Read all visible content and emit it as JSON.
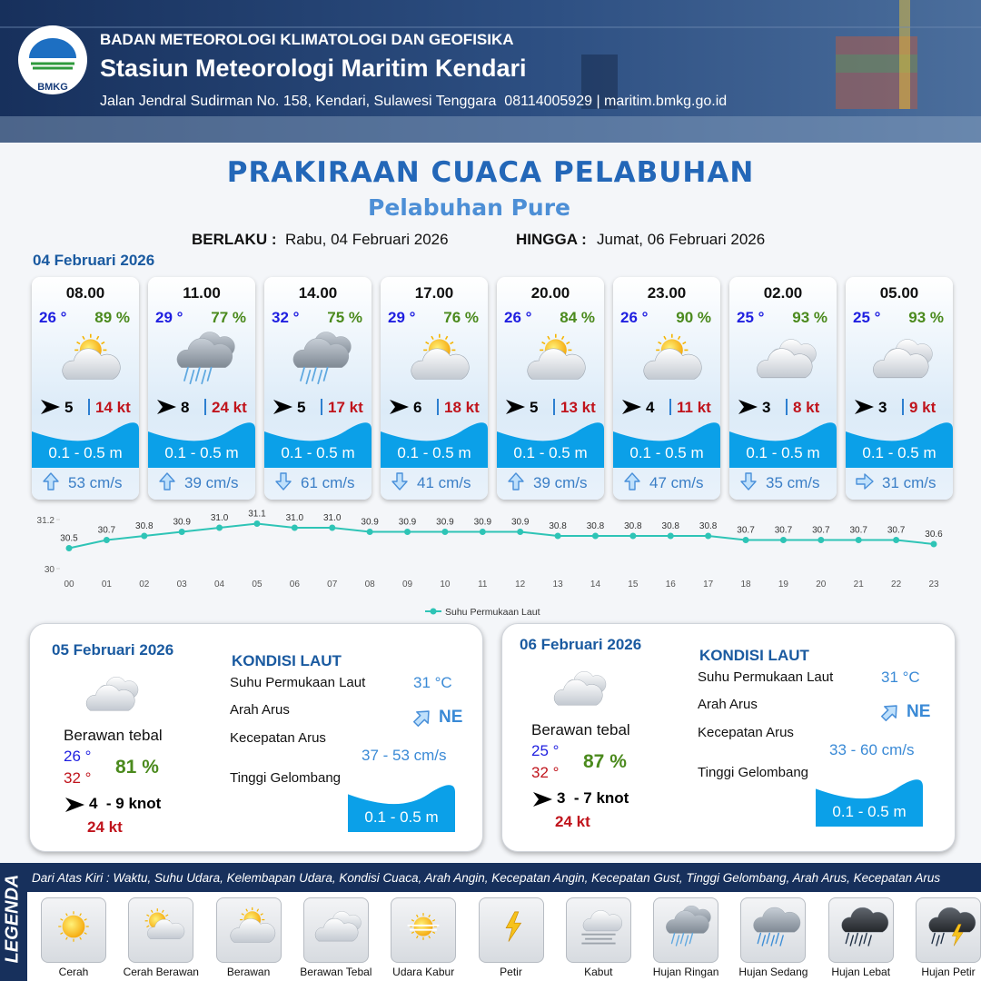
{
  "header": {
    "logo": "BMKG",
    "organization": "BADAN METEOROLOGI KLIMATOLOGI DAN GEOFISIKA",
    "station": "Stasiun Meteorologi Maritim Kendari",
    "address": "Jalan Jendral Sudirman No. 158, Kendari, Sulawesi Tenggara  08114005929 | maritim.bmkg.go.id"
  },
  "title": "PRAKIRAAN CUACA PELABUHAN",
  "subtitle": "Pelabuhan Pure",
  "validity": {
    "from_label": "BERLAKU :",
    "from": "Rabu, 04 Februari 2026",
    "to_label": "HINGGA :",
    "to": "Jumat, 06 Februari 2026"
  },
  "day1": {
    "date": "04 Februari 2026",
    "slots": [
      {
        "time": "08.00",
        "temp": "26 °",
        "humidity": "89 %",
        "icon": "cloud-sun",
        "wind": "5",
        "gust": "14 kt",
        "wave": "0.1 - 0.5 m",
        "current_dir": "up",
        "current": "53 cm/s"
      },
      {
        "time": "11.00",
        "temp": "29 °",
        "humidity": "77 %",
        "icon": "rain-light",
        "wind": "8",
        "gust": "24 kt",
        "wave": "0.1 - 0.5 m",
        "current_dir": "up",
        "current": "39 cm/s"
      },
      {
        "time": "14.00",
        "temp": "32 °",
        "humidity": "75 %",
        "icon": "rain-light",
        "wind": "5",
        "gust": "17 kt",
        "wave": "0.1 - 0.5 m",
        "current_dir": "down",
        "current": "61 cm/s"
      },
      {
        "time": "17.00",
        "temp": "29 °",
        "humidity": "76 %",
        "icon": "cloud-sun",
        "wind": "6",
        "gust": "18 kt",
        "wave": "0.1 - 0.5 m",
        "current_dir": "down",
        "current": "41 cm/s"
      },
      {
        "time": "20.00",
        "temp": "26 °",
        "humidity": "84 %",
        "icon": "cloud-sun",
        "wind": "5",
        "gust": "13 kt",
        "wave": "0.1 - 0.5 m",
        "current_dir": "up",
        "current": "39 cm/s"
      },
      {
        "time": "23.00",
        "temp": "26 °",
        "humidity": "90 %",
        "icon": "cloud-sun",
        "wind": "4",
        "gust": "11 kt",
        "wave": "0.1 - 0.5 m",
        "current_dir": "up",
        "current": "47 cm/s"
      },
      {
        "time": "02.00",
        "temp": "25 °",
        "humidity": "93 %",
        "icon": "clouds",
        "wind": "3",
        "gust": "8 kt",
        "wave": "0.1 - 0.5 m",
        "current_dir": "down",
        "current": "35 cm/s"
      },
      {
        "time": "05.00",
        "temp": "25 °",
        "humidity": "93 %",
        "icon": "clouds",
        "wind": "3",
        "gust": "9 kt",
        "wave": "0.1 - 0.5 m",
        "current_dir": "right",
        "current": "31 cm/s"
      }
    ]
  },
  "chart_data": {
    "type": "line",
    "categories": [
      "00",
      "01",
      "02",
      "03",
      "04",
      "05",
      "06",
      "07",
      "08",
      "09",
      "10",
      "11",
      "12",
      "13",
      "14",
      "15",
      "16",
      "17",
      "18",
      "19",
      "20",
      "21",
      "22",
      "23"
    ],
    "series": [
      {
        "name": "Suhu Permukaan Laut",
        "color": "#2ec4b6",
        "values": [
          30.5,
          30.7,
          30.8,
          30.9,
          31.0,
          31.1,
          31.0,
          31.0,
          30.9,
          30.9,
          30.9,
          30.9,
          30.9,
          30.8,
          30.8,
          30.8,
          30.8,
          30.8,
          30.7,
          30.7,
          30.7,
          30.7,
          30.7,
          30.6
        ],
        "value_labels": [
          "30.5",
          "30.7",
          "30.8",
          "30.9",
          "31.0",
          "31.1",
          "31.0",
          "31.0",
          "30.9",
          "30.9",
          "30.9",
          "30.9",
          "30.9",
          "30.8",
          "30.8",
          "30.8",
          "30.8",
          "30.8",
          "30.7",
          "30.7",
          "30.7",
          "30.7",
          "30.7",
          "30.6"
        ]
      }
    ],
    "ylim": [
      30,
      31.2
    ],
    "yticks": [
      30,
      31.2
    ],
    "legend": "bottom"
  },
  "panels": [
    {
      "date": "05 Februari 2026",
      "icon": "clouds",
      "condition": "Berawan tebal",
      "temp_min": "26 °",
      "temp_max": "32 °",
      "humidity": "81 %",
      "wind": "4  - 9 knot",
      "gust": "24 kt",
      "sea_title": "KONDISI LAUT",
      "sea_labels": [
        "Suhu Permukaan Laut",
        "Arah Arus",
        "Kecepatan Arus",
        "Tinggi Gelombang"
      ],
      "sst": "31 °C",
      "current_dir": "ne",
      "current_direction": "NE",
      "current_speed": "37 - 53 cm/s",
      "wave": "0.1 - 0.5 m"
    },
    {
      "date": "06 Februari 2026",
      "icon": "clouds",
      "condition": "Berawan tebal",
      "temp_min": "25 °",
      "temp_max": "32 °",
      "humidity": "87 %",
      "wind": "3  - 7 knot",
      "gust": "24 kt",
      "sea_title": "KONDISI LAUT",
      "sea_labels": [
        "Suhu Permukaan Laut",
        "Arah Arus",
        "Kecepatan Arus",
        "Tinggi Gelombang"
      ],
      "sst": "31 °C",
      "current_dir": "ne",
      "current_direction": "NE",
      "current_speed": "33 - 60 cm/s",
      "wave": "0.1 - 0.5 m"
    }
  ],
  "legend": {
    "title": "LEGENDA",
    "note": "Dari Atas Kiri : Waktu, Suhu Udara, Kelembapan Udara, Kondisi Cuaca, Arah Angin, Kecepatan Angin, Kecepatan Gust, Tinggi Gelombang, Arah Arus, Kecepatan Arus",
    "items": [
      {
        "label": "Cerah",
        "icon": "sun"
      },
      {
        "label": "Cerah Berawan",
        "icon": "sun-cloud"
      },
      {
        "label": "Berawan",
        "icon": "cloud-sun"
      },
      {
        "label": "Berawan Tebal",
        "icon": "clouds"
      },
      {
        "label": "Udara Kabur",
        "icon": "haze"
      },
      {
        "label": "Petir",
        "icon": "lightning"
      },
      {
        "label": "Kabut",
        "icon": "fog"
      },
      {
        "label": "Hujan Ringan",
        "icon": "rain-light"
      },
      {
        "label": "Hujan Sedang",
        "icon": "rain"
      },
      {
        "label": "Hujan Lebat",
        "icon": "rain-heavy"
      },
      {
        "label": "Hujan Petir",
        "icon": "storm"
      }
    ]
  }
}
